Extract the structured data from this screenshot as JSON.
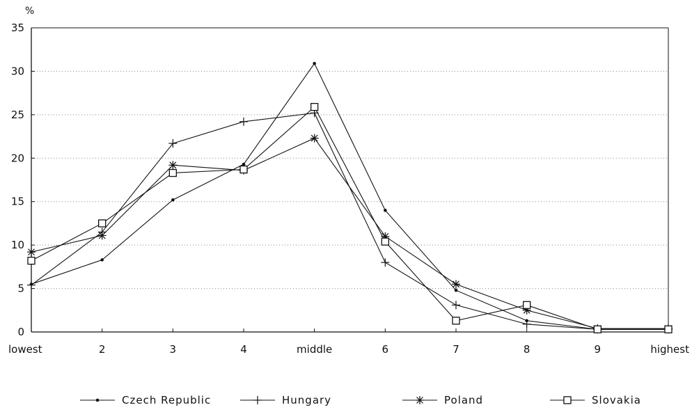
{
  "chart_data": {
    "type": "line",
    "y_unit": "%",
    "categories": [
      "lowest",
      "2",
      "3",
      "4",
      "middle",
      "6",
      "7",
      "8",
      "9",
      "highest"
    ],
    "ylim": [
      0,
      35
    ],
    "yticks": [
      "0",
      "5",
      "10",
      "15",
      "20",
      "25",
      "30",
      "35"
    ],
    "grid": "horizontal dotted",
    "legend_position": "bottom",
    "series": [
      {
        "name": "Czech Republic",
        "marker": "dot",
        "values": [
          5.5,
          8.3,
          15.2,
          19.3,
          30.9,
          14.0,
          4.8,
          1.3,
          0.3,
          0.3
        ]
      },
      {
        "name": "Hungary",
        "marker": "plus",
        "values": [
          5.4,
          11.5,
          21.7,
          24.2,
          25.2,
          8.0,
          3.1,
          0.9,
          0.3,
          0.3
        ]
      },
      {
        "name": "Poland",
        "marker": "star",
        "values": [
          9.2,
          11.1,
          19.2,
          18.6,
          22.3,
          11.0,
          5.5,
          2.5,
          0.4,
          0.4
        ]
      },
      {
        "name": "Slovakia",
        "marker": "square",
        "values": [
          8.2,
          12.5,
          18.3,
          18.7,
          25.9,
          10.4,
          1.3,
          3.1,
          0.3,
          0.3
        ]
      }
    ]
  }
}
